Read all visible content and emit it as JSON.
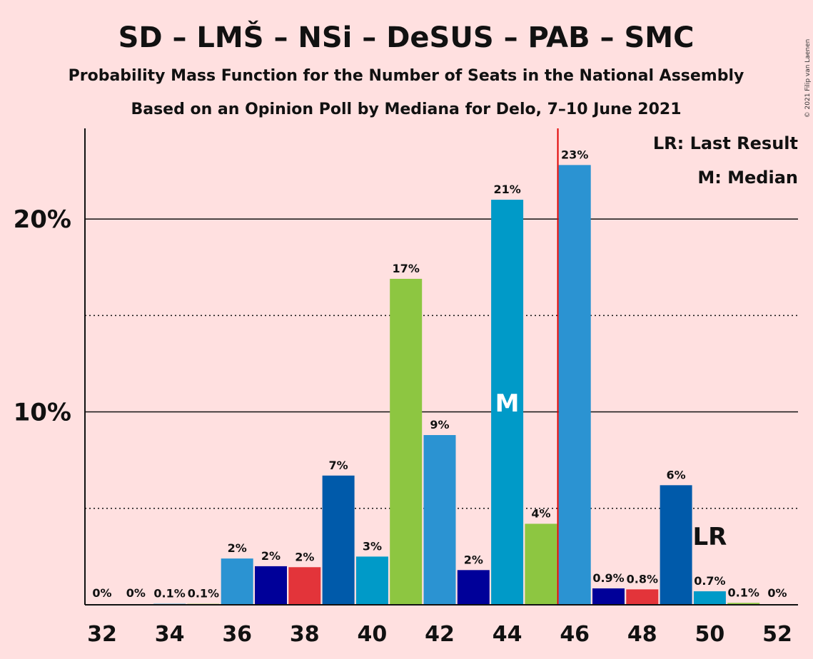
{
  "header": {
    "title": "SD – LMŠ – NSi – DeSUS – PAB – SMC",
    "subtitle1": "Probability Mass Function for the Number of Seats in the National Assembly",
    "subtitle2": "Based on an Opinion Poll by Mediana for Delo, 7–10 June 2021"
  },
  "copyright": "© 2021 Filip van Laenen",
  "legend": {
    "lr": "LR: Last Result",
    "m": "M: Median"
  },
  "markers": {
    "median_label": "M",
    "median_seat": 44,
    "last_result_label": "LR",
    "last_result_seat": 50,
    "majority_line_seat": 45.5,
    "majority_line_color": "#e00000"
  },
  "chart_data": {
    "type": "bar",
    "title": "SD – LMŠ – NSi – DeSUS – PAB – SMC",
    "xlabel": "",
    "ylabel": "",
    "ylim": [
      0,
      24.7
    ],
    "y_ticks": [
      {
        "value": 10,
        "label": "10%"
      },
      {
        "value": 20,
        "label": "20%"
      }
    ],
    "dotted_gridlines": [
      5,
      15
    ],
    "x_tick_labels": [
      "32",
      "34",
      "36",
      "38",
      "40",
      "42",
      "44",
      "46",
      "48",
      "50",
      "52"
    ],
    "x": [
      32,
      33,
      34,
      35,
      36,
      37,
      38,
      39,
      40,
      41,
      42,
      43,
      44,
      45,
      46,
      47,
      48,
      49,
      50,
      51,
      52
    ],
    "values": [
      0,
      0,
      0.05,
      0.05,
      2.4,
      2.0,
      1.95,
      6.7,
      2.5,
      16.9,
      8.8,
      1.8,
      21.0,
      4.2,
      22.8,
      0.85,
      0.8,
      6.2,
      0.7,
      0.1,
      0
    ],
    "labels": [
      "0%",
      "0%",
      "0.1%",
      "0.1%",
      "2%",
      "2%",
      "2%",
      "7%",
      "3%",
      "17%",
      "9%",
      "2%",
      "21%",
      "4%",
      "23%",
      "0.9%",
      "0.8%",
      "6%",
      "0.7%",
      "0.1%",
      "0%"
    ],
    "colors": [
      "#e3343a",
      "#005aaa",
      "#009ac8",
      "#8dc641",
      "#2b93d2",
      "#000099",
      "#e3343a",
      "#005aaa",
      "#009ac8",
      "#8dc641",
      "#2b93d2",
      "#000099",
      "#009ac8",
      "#8dc641",
      "#2b93d2",
      "#000099",
      "#e3343a",
      "#005aaa",
      "#009ac8",
      "#8dc641",
      "#2b93d2"
    ],
    "grid": true,
    "legend_position": "top-right"
  }
}
